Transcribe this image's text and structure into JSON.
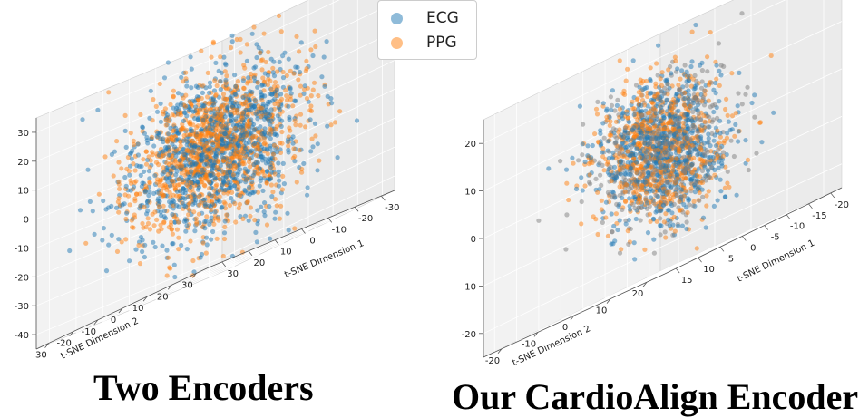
{
  "legend": {
    "items": [
      {
        "label": "ECG",
        "color": "#1f77b4"
      },
      {
        "label": "PPG",
        "color": "#ff7f0e"
      }
    ]
  },
  "captions": {
    "left": "Two Encoders",
    "right": "Our CardioAlign Encoder"
  },
  "chart_data": [
    {
      "type": "scatter",
      "title": "Two Encoders",
      "xlabel": "t-SNE Dimension 1",
      "ylabel": "t-SNE Dimension 2",
      "zlabel": "",
      "xticks": [
        -30,
        -20,
        -10,
        0,
        10,
        20,
        30
      ],
      "yticks": [
        -30,
        -20,
        -10,
        0,
        10,
        20,
        30
      ],
      "zticks": [
        30,
        20,
        10,
        0,
        -10,
        -20,
        -30,
        -40
      ],
      "xlim": [
        -35,
        35
      ],
      "ylim": [
        -35,
        35
      ],
      "zlim": [
        -42,
        36
      ],
      "series": [
        {
          "name": "ECG",
          "color": "#1f77b4",
          "points": 1100,
          "center": [
            0,
            0,
            0
          ],
          "spread": [
            18,
            18,
            18
          ],
          "seed": 11
        },
        {
          "name": "PPG",
          "color": "#ff7f0e",
          "points": 1100,
          "center": [
            0,
            0,
            0
          ],
          "spread": [
            20,
            20,
            20
          ],
          "seed": 23
        }
      ]
    },
    {
      "type": "scatter",
      "title": "Our CardioAlign Encoder",
      "xlabel": "t-SNE Dimension 1",
      "ylabel": "t-SNE Dimension 2",
      "zlabel": "",
      "xticks": [
        -20,
        -15,
        -10,
        -5,
        0,
        5,
        10,
        15
      ],
      "yticks": [
        -20,
        -10,
        0,
        10,
        20
      ],
      "zticks": [
        20,
        10,
        0,
        -10,
        -20
      ],
      "xlim": [
        -23,
        18
      ],
      "ylim": [
        -24,
        22
      ],
      "zlim": [
        -23,
        24
      ],
      "series": [
        {
          "name": "ECG",
          "color": "#1f77b4",
          "points": 1000,
          "center": [
            0,
            0,
            0
          ],
          "spread": [
            12,
            12,
            12
          ],
          "seed": 37
        },
        {
          "name": "PPG",
          "color": "#ff7f0e",
          "points": 900,
          "center": [
            0,
            0,
            0
          ],
          "spread": [
            12,
            12,
            12
          ],
          "seed": 41
        }
      ]
    }
  ]
}
